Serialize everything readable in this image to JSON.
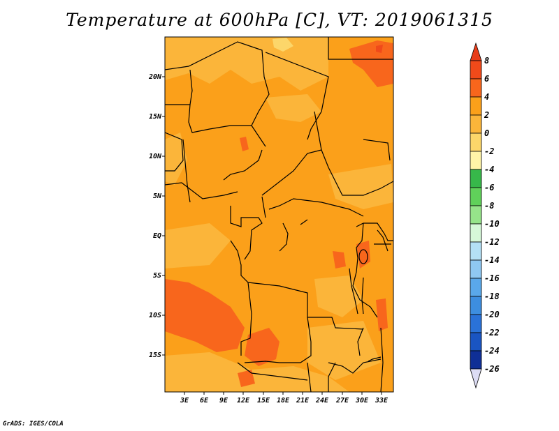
{
  "title": "Temperature at 600hPa [C], VT: 2019061315",
  "credit": "GrADS: IGES/COLA",
  "map": {
    "lat_ticks": [
      "20N",
      "15N",
      "10N",
      "5N",
      "EQ",
      "5S",
      "10S",
      "15S"
    ],
    "lon_ticks": [
      "3E",
      "6E",
      "9E",
      "12E",
      "15E",
      "18E",
      "21E",
      "24E",
      "27E",
      "30E",
      "33E"
    ],
    "lon_range": [
      0,
      34.5
    ],
    "lat_range": [
      -19.5,
      25
    ]
  },
  "colorbar": {
    "levels": [
      "8",
      "6",
      "4",
      "2",
      "0",
      "-2",
      "-4",
      "-6",
      "-8",
      "-10",
      "-12",
      "-14",
      "-16",
      "-18",
      "-20",
      "-22",
      "-24",
      "-26"
    ],
    "colors": {
      "above_8": "#e83c19",
      "6_8": "#f04a1a",
      "4_6": "#f8661c",
      "2_4": "#fba01a",
      "0_2": "#fbb53a",
      "m2_0": "#fcd66a",
      "m4_m2": "#fff4a8",
      "m6_m4": "#37b84a",
      "m8_m6": "#60d15a",
      "m10_m8": "#96e48a",
      "m12_m10": "#d6f8d8",
      "m14_m12": "#b4e0f5",
      "m16_m14": "#8fc8f2",
      "m18_m16": "#5aa8ea",
      "m20_m18": "#3d8ee0",
      "m22_m20": "#2a72d8",
      "m24_m22": "#1a55c2",
      "m26_m24": "#0f2f96",
      "below_m26": "#0c1466",
      "bottom_triangle": "#dcdcf4"
    }
  },
  "map_colors": {
    "background": "#fba01a",
    "light": "#fbb53a",
    "pale": "#fcd66a",
    "warm": "#f8661c",
    "hot": "#f04a1a"
  }
}
